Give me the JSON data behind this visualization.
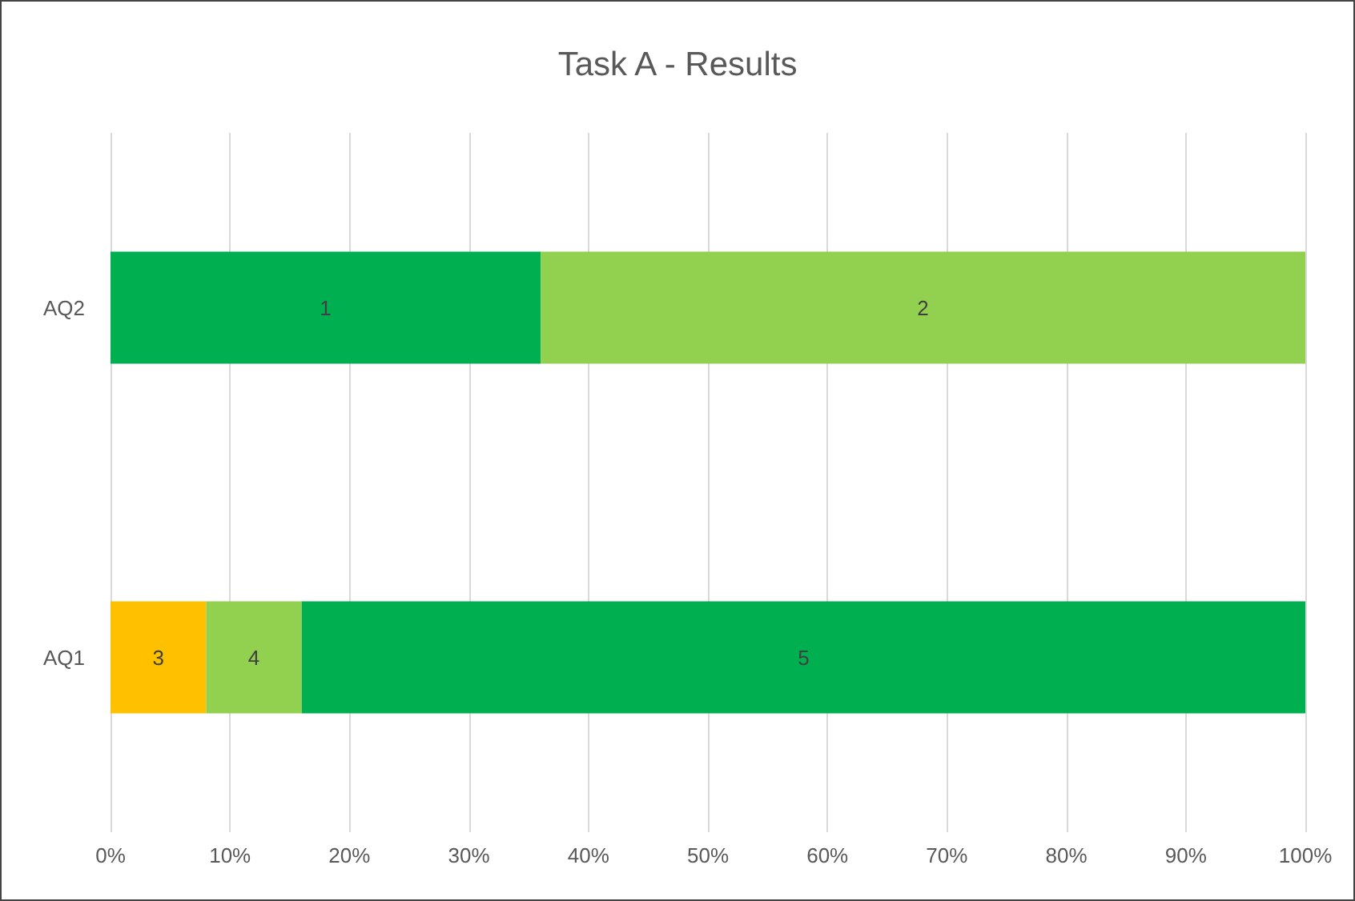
{
  "chart_data": {
    "type": "bar",
    "title": "Task A - Results",
    "orientation": "horizontal",
    "stacked": true,
    "categories": [
      "AQ2",
      "AQ1"
    ],
    "series": [
      {
        "name": "1",
        "color": "#00b050",
        "values": [
          36,
          null
        ]
      },
      {
        "name": "2",
        "color": "#92d050",
        "values": [
          64,
          null
        ]
      },
      {
        "name": "3",
        "color": "#ffc000",
        "values": [
          null,
          8
        ]
      },
      {
        "name": "4",
        "color": "#92d050",
        "values": [
          null,
          8
        ]
      },
      {
        "name": "5",
        "color": "#00b050",
        "values": [
          null,
          84
        ]
      }
    ],
    "xlim": [
      0,
      100
    ],
    "xticks": [
      {
        "value": 0,
        "label": "0%"
      },
      {
        "value": 10,
        "label": "10%"
      },
      {
        "value": 20,
        "label": "20%"
      },
      {
        "value": 30,
        "label": "30%"
      },
      {
        "value": 40,
        "label": "40%"
      },
      {
        "value": 50,
        "label": "50%"
      },
      {
        "value": 60,
        "label": "60%"
      },
      {
        "value": 70,
        "label": "70%"
      },
      {
        "value": 80,
        "label": "80%"
      },
      {
        "value": 90,
        "label": "90%"
      },
      {
        "value": 100,
        "label": "100%"
      }
    ],
    "grid": "x"
  }
}
